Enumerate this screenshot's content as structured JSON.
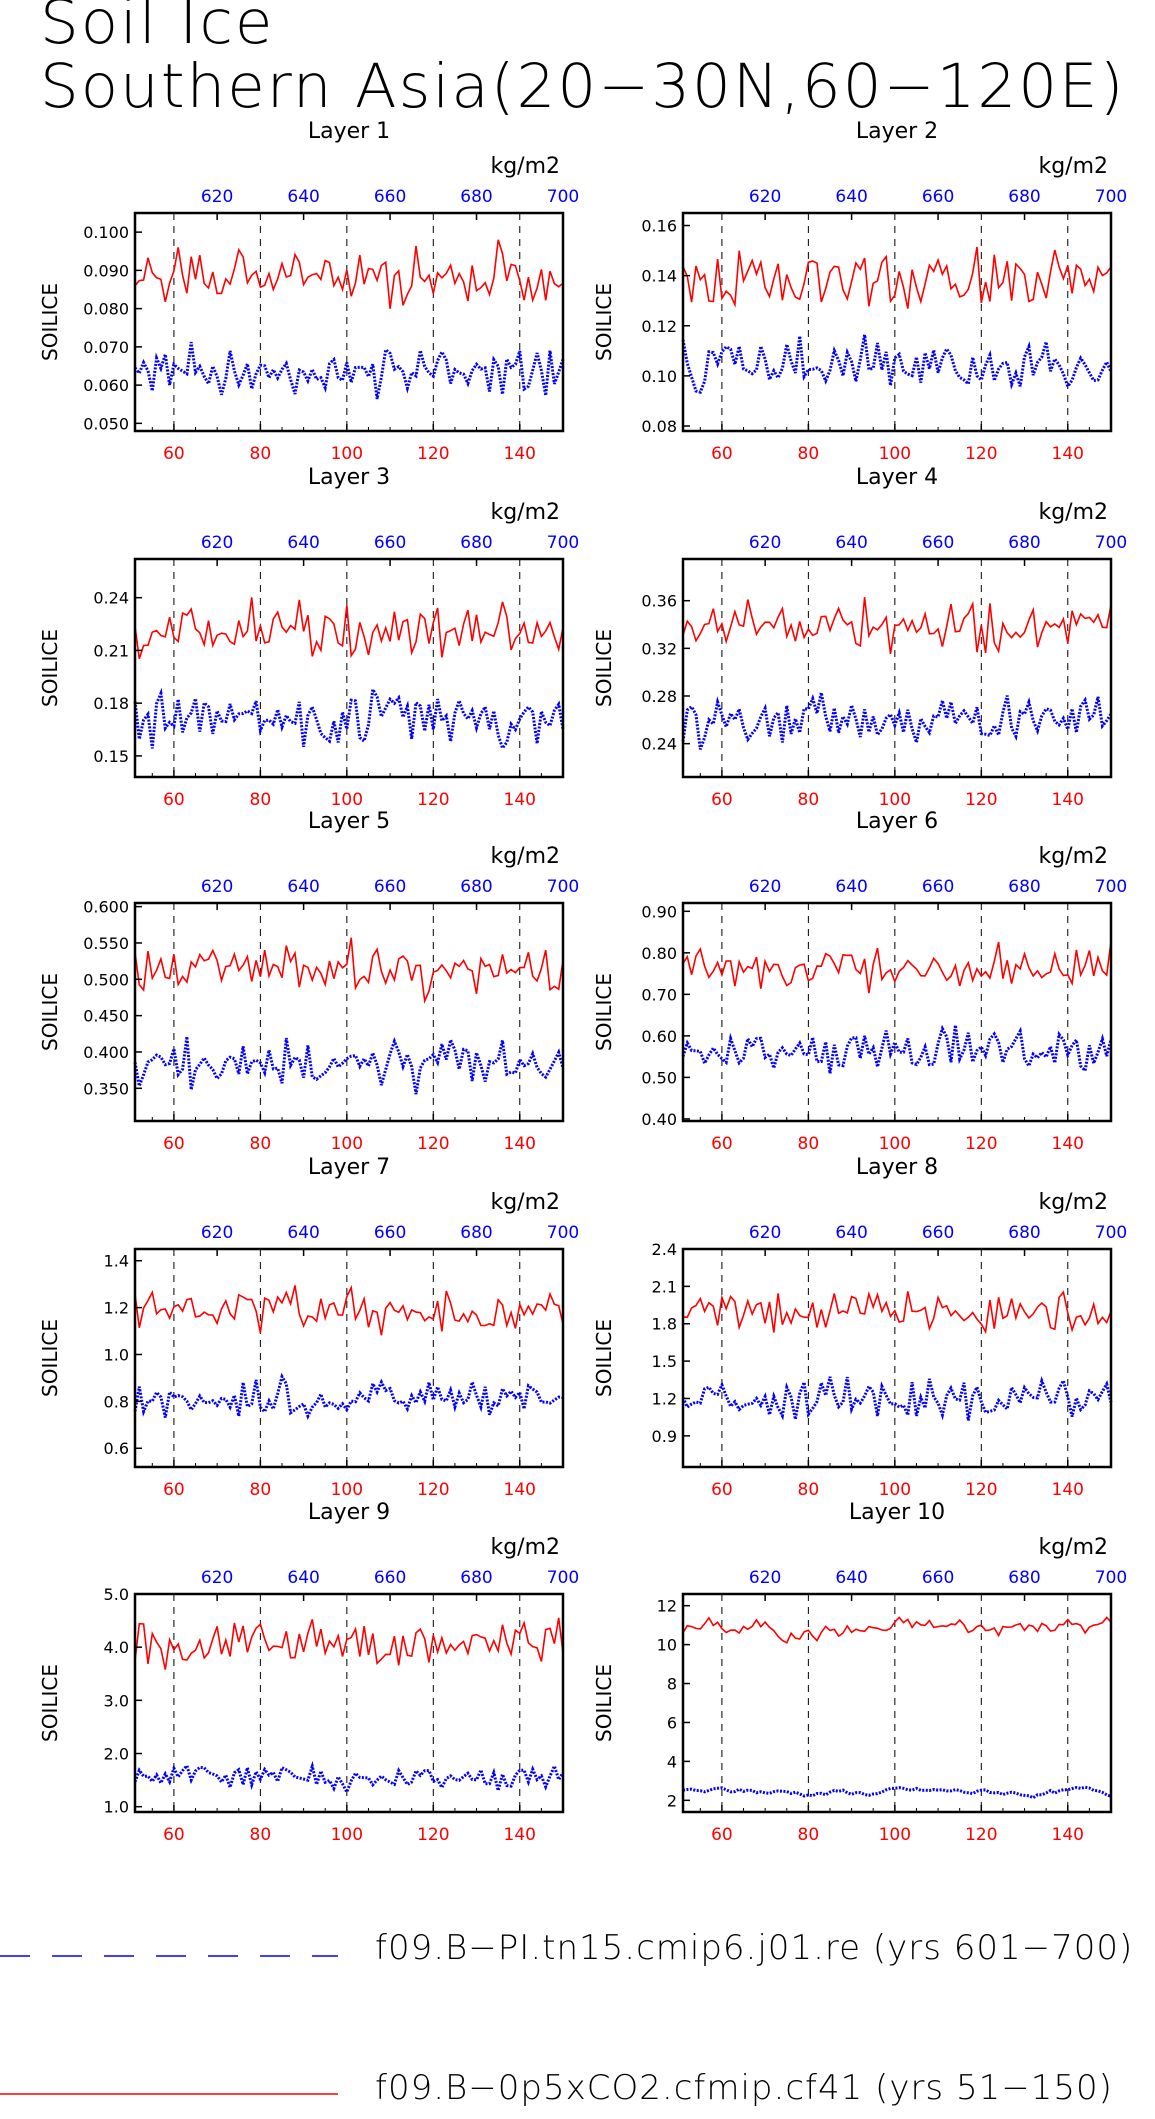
{
  "title": {
    "line1": "Soil Ice",
    "line2": "Southern Asia(20−30N,60−120E)"
  },
  "colors": {
    "red": "#ff0000",
    "blue": "#0000ff",
    "axis": "#000000"
  },
  "legend": [
    {
      "label": "f09.B−PI.tn15.cmip6.j01.re (yrs 601−700)",
      "color": "#0000ff",
      "style": "dashed"
    },
    {
      "label": "f09.B−0p5xCO2.cfmip.cf41 (yrs 51−150)",
      "color": "#ff0000",
      "style": "solid"
    }
  ],
  "chart_data": [
    {
      "type": "line",
      "title": "Layer 1",
      "ylabel": "SOILICE",
      "units": "kg/m2",
      "x_bottom": {
        "range": [
          51,
          150
        ],
        "ticks": [
          60,
          80,
          100,
          120,
          140
        ],
        "color": "red"
      },
      "x_top": {
        "range": [
          601,
          700
        ],
        "ticks": [
          620,
          640,
          660,
          680,
          700
        ],
        "color": "blue"
      },
      "ylim": [
        0.048,
        0.105
      ],
      "yticks": [
        "0.050",
        "0.060",
        "0.070",
        "0.080",
        "0.090",
        "0.100"
      ],
      "series": [
        {
          "color": "red",
          "style": "solid",
          "mean": 0.088,
          "amp": 0.0075,
          "seed": 11
        },
        {
          "color": "blue",
          "style": "dotted",
          "mean": 0.064,
          "amp": 0.0065,
          "seed": 12
        }
      ]
    },
    {
      "type": "line",
      "title": "Layer 2",
      "ylabel": "SOILICE",
      "units": "kg/m2",
      "x_bottom": {
        "range": [
          51,
          150
        ],
        "ticks": [
          60,
          80,
          100,
          120,
          140
        ],
        "color": "red"
      },
      "x_top": {
        "range": [
          601,
          700
        ],
        "ticks": [
          620,
          640,
          660,
          680,
          700
        ],
        "color": "blue"
      },
      "ylim": [
        0.078,
        0.165
      ],
      "yticks": [
        "0.08",
        "0.10",
        "0.12",
        "0.14",
        "0.16"
      ],
      "series": [
        {
          "color": "red",
          "style": "solid",
          "mean": 0.138,
          "amp": 0.011,
          "seed": 21
        },
        {
          "color": "blue",
          "style": "dotted",
          "mean": 0.104,
          "amp": 0.01,
          "seed": 22
        }
      ]
    },
    {
      "type": "line",
      "title": "Layer 3",
      "ylabel": "SOILICE",
      "units": "kg/m2",
      "x_bottom": {
        "range": [
          51,
          150
        ],
        "ticks": [
          60,
          80,
          100,
          120,
          140
        ],
        "color": "red"
      },
      "x_top": {
        "range": [
          601,
          700
        ],
        "ticks": [
          620,
          640,
          660,
          680,
          700
        ],
        "color": "blue"
      },
      "ylim": [
        0.138,
        0.262
      ],
      "yticks": [
        "0.15",
        "0.18",
        "0.21",
        "0.24"
      ],
      "series": [
        {
          "color": "red",
          "style": "solid",
          "mean": 0.222,
          "amp": 0.014,
          "seed": 31
        },
        {
          "color": "blue",
          "style": "dotted",
          "mean": 0.172,
          "amp": 0.014,
          "seed": 32
        }
      ]
    },
    {
      "type": "line",
      "title": "Layer 4",
      "ylabel": "SOILICE",
      "units": "kg/m2",
      "x_bottom": {
        "range": [
          51,
          150
        ],
        "ticks": [
          60,
          80,
          100,
          120,
          140
        ],
        "color": "red"
      },
      "x_top": {
        "range": [
          601,
          700
        ],
        "ticks": [
          620,
          640,
          660,
          680,
          700
        ],
        "color": "blue"
      },
      "ylim": [
        0.212,
        0.395
      ],
      "yticks": [
        "0.24",
        "0.28",
        "0.32",
        "0.36"
      ],
      "series": [
        {
          "color": "red",
          "style": "solid",
          "mean": 0.338,
          "amp": 0.02,
          "seed": 41
        },
        {
          "color": "blue",
          "style": "dotted",
          "mean": 0.262,
          "amp": 0.018,
          "seed": 42
        }
      ]
    },
    {
      "type": "line",
      "title": "Layer 5",
      "ylabel": "SOILICE",
      "units": "kg/m2",
      "x_bottom": {
        "range": [
          51,
          150
        ],
        "ticks": [
          60,
          80,
          100,
          120,
          140
        ],
        "color": "red"
      },
      "x_top": {
        "range": [
          601,
          700
        ],
        "ticks": [
          620,
          640,
          660,
          680,
          700
        ],
        "color": "blue"
      },
      "ylim": [
        0.305,
        0.605
      ],
      "yticks": [
        "0.350",
        "0.400",
        "0.450",
        "0.500",
        "0.550",
        "0.600"
      ],
      "series": [
        {
          "color": "red",
          "style": "solid",
          "mean": 0.515,
          "amp": 0.03,
          "seed": 51
        },
        {
          "color": "blue",
          "style": "dotted",
          "mean": 0.385,
          "amp": 0.03,
          "seed": 52
        }
      ]
    },
    {
      "type": "line",
      "title": "Layer 6",
      "ylabel": "SOILICE",
      "units": "kg/m2",
      "x_bottom": {
        "range": [
          51,
          150
        ],
        "ticks": [
          60,
          80,
          100,
          120,
          140
        ],
        "color": "red"
      },
      "x_top": {
        "range": [
          601,
          700
        ],
        "ticks": [
          620,
          640,
          660,
          680,
          700
        ],
        "color": "blue"
      },
      "ylim": [
        0.395,
        0.92
      ],
      "yticks": [
        "0.40",
        "0.50",
        "0.60",
        "0.70",
        "0.80",
        "0.90"
      ],
      "series": [
        {
          "color": "red",
          "style": "solid",
          "mean": 0.765,
          "amp": 0.045,
          "seed": 61
        },
        {
          "color": "blue",
          "style": "dotted",
          "mean": 0.565,
          "amp": 0.045,
          "seed": 62
        }
      ]
    },
    {
      "type": "line",
      "title": "Layer 7",
      "ylabel": "SOILICE",
      "units": "kg/m2",
      "x_bottom": {
        "range": [
          51,
          150
        ],
        "ticks": [
          60,
          80,
          100,
          120,
          140
        ],
        "color": "red"
      },
      "x_top": {
        "range": [
          601,
          700
        ],
        "ticks": [
          620,
          640,
          660,
          680,
          700
        ],
        "color": "blue"
      },
      "ylim": [
        0.52,
        1.45
      ],
      "yticks": [
        "0.6",
        "0.8",
        "1.0",
        "1.2",
        "1.4"
      ],
      "series": [
        {
          "color": "red",
          "style": "solid",
          "mean": 1.19,
          "amp": 0.09,
          "seed": 71
        },
        {
          "color": "blue",
          "style": "dotted",
          "mean": 0.81,
          "amp": 0.07,
          "seed": 72
        }
      ]
    },
    {
      "type": "line",
      "title": "Layer 8",
      "ylabel": "SOILICE",
      "units": "kg/m2",
      "x_bottom": {
        "range": [
          51,
          150
        ],
        "ticks": [
          60,
          80,
          100,
          120,
          140
        ],
        "color": "red"
      },
      "x_top": {
        "range": [
          601,
          700
        ],
        "ticks": [
          620,
          640,
          660,
          680,
          700
        ],
        "color": "blue"
      },
      "ylim": [
        0.65,
        2.4
      ],
      "yticks": [
        "0.9",
        "1.2",
        "1.5",
        "1.8",
        "2.1",
        "2.4"
      ],
      "series": [
        {
          "color": "red",
          "style": "solid",
          "mean": 1.9,
          "amp": 0.15,
          "seed": 81
        },
        {
          "color": "blue",
          "style": "dotted",
          "mean": 1.2,
          "amp": 0.15,
          "seed": 82
        }
      ]
    },
    {
      "type": "line",
      "title": "Layer 9",
      "ylabel": "SOILICE",
      "units": "kg/m2",
      "x_bottom": {
        "range": [
          51,
          150
        ],
        "ticks": [
          60,
          80,
          100,
          120,
          140
        ],
        "color": "red"
      },
      "x_top": {
        "range": [
          601,
          700
        ],
        "ticks": [
          620,
          640,
          660,
          680,
          700
        ],
        "color": "blue"
      },
      "ylim": [
        0.9,
        5.0
      ],
      "yticks": [
        "1.0",
        "2.0",
        "3.0",
        "4.0",
        "5.0"
      ],
      "series": [
        {
          "color": "red",
          "style": "solid",
          "mean": 4.05,
          "amp": 0.4,
          "seed": 91
        },
        {
          "color": "blue",
          "style": "dotted",
          "mean": 1.55,
          "amp": 0.2,
          "seed": 92
        }
      ]
    },
    {
      "type": "line",
      "title": "Layer 10",
      "ylabel": "SOILICE",
      "units": "kg/m2",
      "x_bottom": {
        "range": [
          51,
          150
        ],
        "ticks": [
          60,
          80,
          100,
          120,
          140
        ],
        "color": "red"
      },
      "x_top": {
        "range": [
          601,
          700
        ],
        "ticks": [
          620,
          640,
          660,
          680,
          700
        ],
        "color": "blue"
      },
      "ylim": [
        1.4,
        12.6
      ],
      "yticks": [
        "2",
        "4",
        "6",
        "8",
        "10",
        "12"
      ],
      "series": [
        {
          "color": "red",
          "style": "solid",
          "mean": 10.9,
          "amp": 0.55,
          "seed": 101,
          "smooth": true
        },
        {
          "color": "blue",
          "style": "dotted",
          "mean": 2.4,
          "amp": 0.18,
          "seed": 102,
          "smooth": true
        }
      ]
    }
  ]
}
